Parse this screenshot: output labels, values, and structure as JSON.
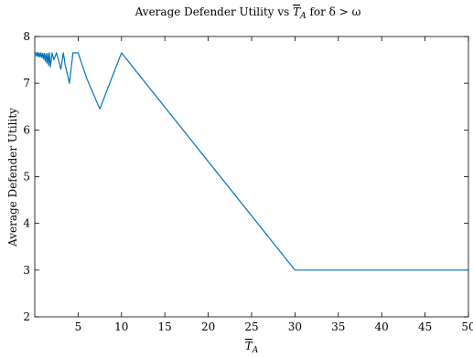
{
  "chart_data": {
    "type": "line",
    "title_main": "Average Defender Utility vs ",
    "title_T": "T",
    "title_sub": "A",
    "title_tail": " for δ > ω",
    "xlabel_T": "T",
    "xlabel_sub": "A",
    "ylabel": "Average Defender Utility",
    "xlim": [
      0,
      50
    ],
    "ylim": [
      2,
      8
    ],
    "xticks": [
      5,
      10,
      15,
      20,
      25,
      30,
      35,
      40,
      45,
      50
    ],
    "xtick_labels": [
      "5",
      "10",
      "15",
      "20",
      "25",
      "30",
      "35",
      "40",
      "45",
      "50"
    ],
    "yticks": [
      2,
      3,
      4,
      5,
      6,
      7,
      8
    ],
    "ytick_labels": [
      "2",
      "3",
      "4",
      "5",
      "6",
      "7",
      "8"
    ],
    "grid": false,
    "series": [
      {
        "color": "#0072BD",
        "x": [
          0.0,
          0.1,
          0.2,
          0.3,
          0.4,
          0.5,
          0.6,
          0.7,
          0.8,
          0.9,
          1.0,
          1.1,
          1.2,
          1.3,
          1.4,
          1.5,
          1.6,
          1.7,
          1.8,
          2.0,
          2.2,
          2.5,
          2.8,
          3.0,
          3.3,
          3.5,
          4.0,
          4.4,
          5.0,
          6.0,
          7.5,
          10.0,
          30.0,
          50.0
        ],
        "y": [
          7.6,
          7.65,
          7.58,
          7.66,
          7.57,
          7.65,
          7.56,
          7.65,
          7.55,
          7.64,
          7.52,
          7.64,
          7.47,
          7.63,
          7.43,
          7.64,
          7.38,
          7.65,
          7.35,
          7.65,
          7.5,
          7.65,
          7.45,
          7.3,
          7.65,
          7.4,
          7.0,
          7.65,
          7.65,
          7.1,
          6.45,
          7.65,
          3.0,
          3.0
        ]
      }
    ]
  }
}
